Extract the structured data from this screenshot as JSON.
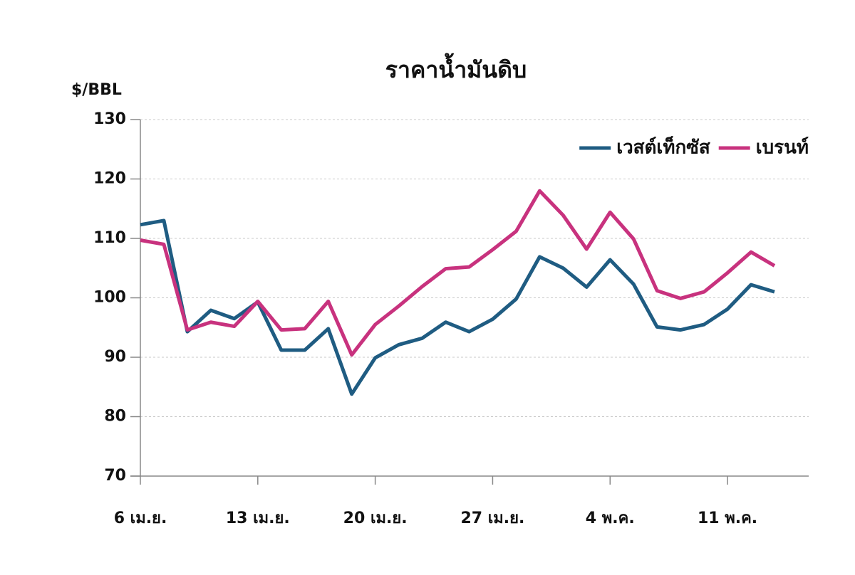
{
  "chart_data": {
    "type": "line",
    "title": "ราคาน้ำมันดิบ",
    "y_label": "$/BBL",
    "categories": [
      "6 เม.ย.",
      null,
      null,
      null,
      null,
      "13 เม.ย.",
      null,
      null,
      null,
      null,
      "20 เม.ย.",
      null,
      null,
      null,
      null,
      "27 เม.ย.",
      null,
      null,
      null,
      null,
      "4 พ.ค.",
      null,
      null,
      null,
      null,
      "11 พ.ค.",
      null,
      null
    ],
    "series": [
      {
        "name": "เวสต์เท็กซัส",
        "color": "#1f5c82",
        "values": [
          112.3,
          113,
          94.3,
          97.9,
          96.5,
          99.3,
          91.2,
          91.2,
          94.8,
          83.8,
          89.9,
          92.1,
          93.2,
          95.9,
          94.3,
          96.4,
          99.8,
          106.9,
          105,
          101.8,
          106.4,
          102.3,
          95.1,
          94.6,
          95.5,
          98.1,
          102.2,
          101
        ]
      },
      {
        "name": "เบรนท์",
        "color": "#c8327e",
        "values": [
          109.7,
          109,
          94.6,
          95.9,
          95.2,
          99.4,
          94.6,
          94.8,
          99.4,
          90.4,
          95.5,
          98.6,
          101.9,
          104.9,
          105.2,
          108.1,
          111.2,
          118,
          113.9,
          108.2,
          114.4,
          109.9,
          101.2,
          99.9,
          101,
          104.2,
          107.7,
          105.4
        ]
      }
    ],
    "ylim": [
      70,
      130
    ],
    "yticks": [
      70,
      80,
      90,
      100,
      110,
      120,
      130
    ],
    "grid": true,
    "legend": "top-right"
  }
}
